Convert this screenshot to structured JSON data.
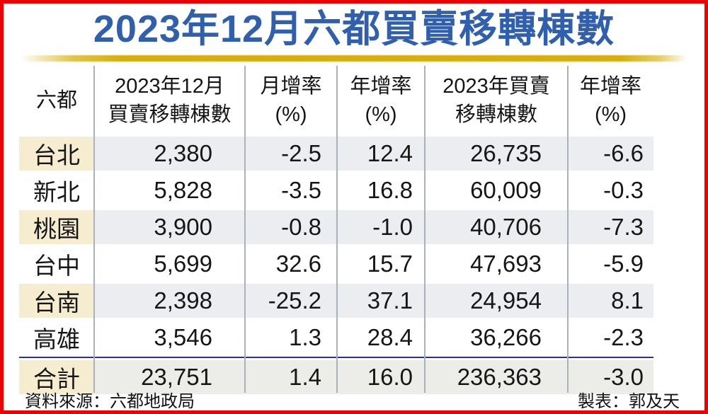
{
  "title": "2023年12月六都買賣移轉棟數",
  "table": {
    "headers": [
      {
        "line1": "六都",
        "line2": ""
      },
      {
        "line1": "2023年12月",
        "line2": "買賣移轉棟數"
      },
      {
        "line1": "月增率",
        "line2": "(%)"
      },
      {
        "line1": "年增率",
        "line2": "(%)"
      },
      {
        "line1": "2023年買賣",
        "line2": "移轉棟數"
      },
      {
        "line1": "年增率",
        "line2": "(%)"
      }
    ],
    "rows": [
      {
        "city": "台北",
        "dec_count": "2,380",
        "mom": "-2.5",
        "yoy": "12.4",
        "year_count": "26,735",
        "year_yoy": "-6.6"
      },
      {
        "city": "新北",
        "dec_count": "5,828",
        "mom": "-3.5",
        "yoy": "16.8",
        "year_count": "60,009",
        "year_yoy": "-0.3"
      },
      {
        "city": "桃園",
        "dec_count": "3,900",
        "mom": "-0.8",
        "yoy": "-1.0",
        "year_count": "40,706",
        "year_yoy": "-7.3"
      },
      {
        "city": "台中",
        "dec_count": "5,699",
        "mom": "32.6",
        "yoy": "15.7",
        "year_count": "47,693",
        "year_yoy": "-5.9"
      },
      {
        "city": "台南",
        "dec_count": "2,398",
        "mom": "-25.2",
        "yoy": "37.1",
        "year_count": "24,954",
        "year_yoy": "8.1"
      },
      {
        "city": "高雄",
        "dec_count": "3,546",
        "mom": "1.3",
        "yoy": "28.4",
        "year_count": "36,266",
        "year_yoy": "-2.3"
      }
    ],
    "total": {
      "city": "合計",
      "dec_count": "23,751",
      "mom": "1.4",
      "yoy": "16.0",
      "year_count": "236,363",
      "year_yoy": "-3.0"
    }
  },
  "footer": {
    "source": "資料來源：六都地政局",
    "credit": "製表：郭及天"
  },
  "colors": {
    "frame_border": "#ee0000",
    "title_blue": "#2f5fad",
    "gold_bar": "#d9ae08",
    "stripe_gray": "#ebedf1",
    "stripe_cream": "#f6ecd0",
    "total_gray": "#ecede9",
    "navy_separator": "#2e3192",
    "column_line": "#a8b2ba"
  },
  "chart_data": {
    "type": "table",
    "title": "2023年12月六都買賣移轉棟數",
    "columns": [
      "六都",
      "2023年12月買賣移轉棟數",
      "月增率(%)",
      "年增率(%)",
      "2023年買賣移轉棟數",
      "年增率(%)"
    ],
    "rows": [
      [
        "台北",
        2380,
        -2.5,
        12.4,
        26735,
        -6.6
      ],
      [
        "新北",
        5828,
        -3.5,
        16.8,
        60009,
        -0.3
      ],
      [
        "桃園",
        3900,
        -0.8,
        -1.0,
        40706,
        -7.3
      ],
      [
        "台中",
        5699,
        32.6,
        15.7,
        47693,
        -5.9
      ],
      [
        "台南",
        2398,
        -25.2,
        37.1,
        24954,
        8.1
      ],
      [
        "高雄",
        3546,
        1.3,
        28.4,
        36266,
        -2.3
      ]
    ],
    "total_row": [
      "合計",
      23751,
      1.4,
      16.0,
      236363,
      -3.0
    ],
    "source": "資料來源：六都地政局",
    "credit": "製表：郭及天"
  }
}
